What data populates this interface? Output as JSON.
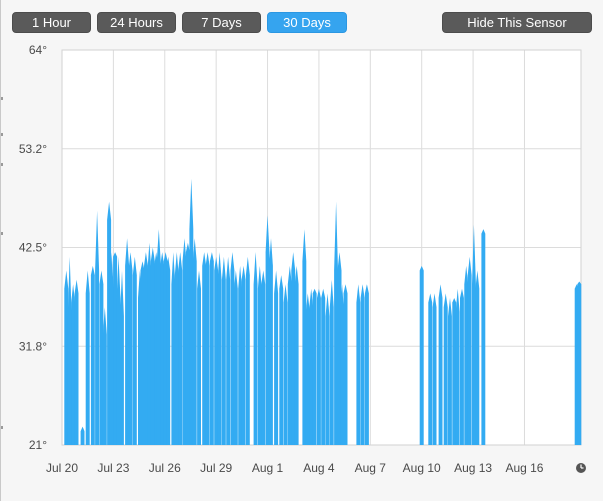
{
  "toolbar": {
    "range_buttons": [
      "1 Hour",
      "24 Hours",
      "7 Days",
      "30 Days"
    ],
    "active_range": "30 Days",
    "hide_label": "Hide This Sensor"
  },
  "colors": {
    "accent": "#35a4ef",
    "series": "#33abf2",
    "button": "#5a5a5a",
    "grid": "#dcdcdc"
  },
  "icons": {
    "clock": "clock-icon"
  },
  "chart_data": {
    "type": "area",
    "title": "",
    "xlabel": "",
    "ylabel": "",
    "x_ticks": [
      "Jul 20",
      "Jul 23",
      "Jul 26",
      "Jul 29",
      "Aug 1",
      "Aug 4",
      "Aug 7",
      "Aug 10",
      "Aug 13",
      "Aug 16"
    ],
    "y_ticks": [
      "64°",
      "53.2°",
      "42.5°",
      "31.8°",
      "21°"
    ],
    "ylim": [
      21,
      64
    ],
    "xlim_days": [
      0,
      30.3
    ],
    "grid": true,
    "legend": "none",
    "series": [
      {
        "samples": [
          [
            0.25,
            38.0,
            40.0
          ],
          [
            0.45,
            35.0,
            41.5
          ],
          [
            0.65,
            36.5,
            38.5
          ],
          [
            0.85,
            37.5,
            39.0
          ],
          [
            1.2,
            22.5,
            23.0
          ],
          [
            1.5,
            37.5,
            40.0
          ],
          [
            1.8,
            39.5,
            40.5
          ],
          [
            2.05,
            40.0,
            46.5
          ],
          [
            2.3,
            38.5,
            40.0
          ],
          [
            2.5,
            33.0,
            36.0
          ],
          [
            2.75,
            45.5,
            47.5
          ],
          [
            2.9,
            38.0,
            42.0
          ],
          [
            3.1,
            41.5,
            42.0
          ],
          [
            3.3,
            37.0,
            41.5
          ],
          [
            3.5,
            35.0,
            40.0
          ],
          [
            3.8,
            40.5,
            43.5
          ],
          [
            4.0,
            40.0,
            42.0
          ],
          [
            4.25,
            39.5,
            41.5
          ],
          [
            4.55,
            37.0,
            40.0
          ],
          [
            4.7,
            40.0,
            41.0
          ],
          [
            4.9,
            40.5,
            42.0
          ],
          [
            5.1,
            40.0,
            43.0
          ],
          [
            5.3,
            41.0,
            42.5
          ],
          [
            5.5,
            40.5,
            42.0
          ],
          [
            5.65,
            41.0,
            44.5
          ],
          [
            5.85,
            40.5,
            42.0
          ],
          [
            6.05,
            41.0,
            42.0
          ],
          [
            6.2,
            40.0,
            41.5
          ],
          [
            6.5,
            38.5,
            42.0
          ],
          [
            6.7,
            39.5,
            42.0
          ],
          [
            6.9,
            40.0,
            42.0
          ],
          [
            7.15,
            41.0,
            43.5
          ],
          [
            7.35,
            42.0,
            43.0
          ],
          [
            7.55,
            44.5,
            50.0
          ],
          [
            7.75,
            41.0,
            43.5
          ],
          [
            8.0,
            38.0,
            40.0
          ],
          [
            8.3,
            40.5,
            42.0
          ],
          [
            8.5,
            40.5,
            42.0
          ],
          [
            8.75,
            41.0,
            42.0
          ],
          [
            9.0,
            40.0,
            41.5
          ],
          [
            9.2,
            39.0,
            42.0
          ],
          [
            9.45,
            39.0,
            41.5
          ],
          [
            9.7,
            39.0,
            41.5
          ],
          [
            9.95,
            40.0,
            42.0
          ],
          [
            10.15,
            38.0,
            40.0
          ],
          [
            10.4,
            38.0,
            40.5
          ],
          [
            10.6,
            39.0,
            40.5
          ],
          [
            10.85,
            39.5,
            41.5
          ],
          [
            11.3,
            38.5,
            42.0
          ],
          [
            11.55,
            38.0,
            40.5
          ],
          [
            11.75,
            38.5,
            40.0
          ],
          [
            12.0,
            42.0,
            46.0
          ],
          [
            12.2,
            40.5,
            43.5
          ],
          [
            12.5,
            37.5,
            40.0
          ],
          [
            12.8,
            38.0,
            39.5
          ],
          [
            13.05,
            36.5,
            38.5
          ],
          [
            13.3,
            38.5,
            40.5
          ],
          [
            13.5,
            40.0,
            42.0
          ],
          [
            13.7,
            38.5,
            40.5
          ],
          [
            14.15,
            41.0,
            44.5
          ],
          [
            14.35,
            35.5,
            37.5
          ],
          [
            14.55,
            36.0,
            38.0
          ],
          [
            14.75,
            37.5,
            38.0
          ],
          [
            15.0,
            37.0,
            38.0
          ],
          [
            15.25,
            37.0,
            38.0
          ],
          [
            15.5,
            35.0,
            37.5
          ],
          [
            15.75,
            36.0,
            39.0
          ],
          [
            16.0,
            40.0,
            47.5
          ],
          [
            16.2,
            40.0,
            42.0
          ],
          [
            16.35,
            35.5,
            38.5
          ],
          [
            16.55,
            37.5,
            38.5
          ],
          [
            17.3,
            36.5,
            38.5
          ],
          [
            17.55,
            37.0,
            38.5
          ],
          [
            17.8,
            37.5,
            38.5
          ],
          [
            21.0,
            40.0,
            40.5
          ],
          [
            21.5,
            36.5,
            37.5
          ],
          [
            21.75,
            36.0,
            37.5
          ],
          [
            22.1,
            37.0,
            38.5
          ],
          [
            22.4,
            36.0,
            37.5
          ],
          [
            22.65,
            35.0,
            37.0
          ],
          [
            22.9,
            36.5,
            37.0
          ],
          [
            23.1,
            35.5,
            38.0
          ],
          [
            23.35,
            37.0,
            38.0
          ],
          [
            23.6,
            38.5,
            40.5
          ],
          [
            23.8,
            39.5,
            41.5
          ],
          [
            24.05,
            38.5,
            45.0
          ],
          [
            24.25,
            38.0,
            40.0
          ],
          [
            24.6,
            44.0,
            44.5
          ],
          [
            30.05,
            38.0,
            38.5
          ],
          [
            30.2,
            38.5,
            38.8
          ]
        ],
        "sample_width_days": 0.23
      }
    ]
  }
}
